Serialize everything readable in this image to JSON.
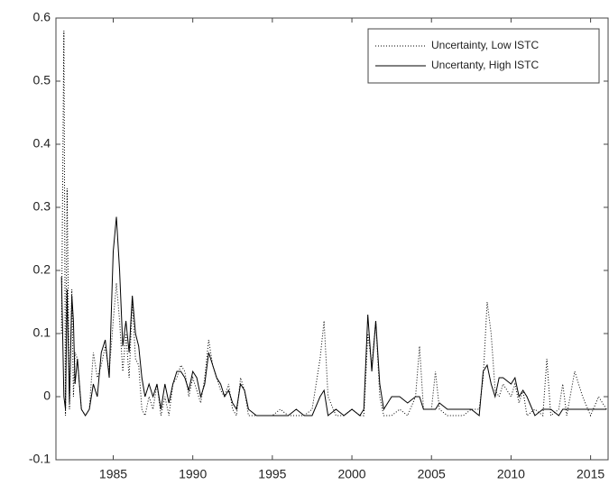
{
  "chart_data": {
    "type": "line",
    "x": [
      1981.75,
      1981.9,
      1982.0,
      1982.1,
      1982.25,
      1982.4,
      1982.5,
      1982.6,
      1982.75,
      1983.0,
      1983.25,
      1983.5,
      1983.75,
      1984.0,
      1984.25,
      1984.5,
      1984.75,
      1985.0,
      1985.2,
      1985.4,
      1985.6,
      1985.8,
      1986.0,
      1986.2,
      1986.4,
      1986.6,
      1986.8,
      1987.0,
      1987.25,
      1987.5,
      1987.75,
      1988.0,
      1988.25,
      1988.5,
      1988.75,
      1989.0,
      1989.25,
      1989.5,
      1989.75,
      1990.0,
      1990.25,
      1990.5,
      1990.75,
      1991.0,
      1991.25,
      1991.5,
      1991.75,
      1992.0,
      1992.25,
      1992.5,
      1992.75,
      1993.0,
      1993.25,
      1993.5,
      1994.0,
      1994.5,
      1995.0,
      1995.5,
      1996.0,
      1996.5,
      1997.0,
      1997.5,
      1998.0,
      1998.25,
      1998.5,
      1999.0,
      1999.5,
      2000.0,
      2000.5,
      2000.75,
      2001.0,
      2001.25,
      2001.5,
      2001.75,
      2002.0,
      2002.5,
      2003.0,
      2003.5,
      2004.0,
      2004.25,
      2004.5,
      2005.0,
      2005.25,
      2005.5,
      2006.0,
      2006.5,
      2007.0,
      2007.5,
      2008.0,
      2008.25,
      2008.5,
      2008.75,
      2009.0,
      2009.25,
      2009.5,
      2010.0,
      2010.25,
      2010.5,
      2010.75,
      2011.0,
      2011.5,
      2012.0,
      2012.25,
      2012.5,
      2013.0,
      2013.25,
      2013.5,
      2014.0,
      2014.5,
      2015.0,
      2015.5,
      2016.0
    ],
    "series": [
      {
        "name": "Uncertainty, Low ISTC",
        "color": "#000000",
        "linestyle": "dotted",
        "values": [
          0.1,
          0.58,
          -0.03,
          0.33,
          -0.02,
          0.17,
          0.0,
          0.07,
          0.06,
          -0.02,
          -0.03,
          -0.02,
          0.07,
          0.03,
          0.05,
          0.08,
          0.04,
          0.12,
          0.18,
          0.12,
          0.04,
          0.1,
          0.03,
          0.15,
          0.06,
          0.05,
          -0.02,
          -0.03,
          0.0,
          -0.02,
          0.02,
          -0.03,
          0.0,
          -0.03,
          0.02,
          0.03,
          0.05,
          0.04,
          0.0,
          0.03,
          0.01,
          -0.01,
          0.03,
          0.09,
          0.05,
          0.03,
          0.01,
          0.0,
          0.02,
          -0.02,
          -0.03,
          0.03,
          0.01,
          -0.03,
          -0.03,
          -0.03,
          -0.03,
          -0.02,
          -0.03,
          -0.03,
          -0.03,
          -0.02,
          0.06,
          0.12,
          0.0,
          -0.03,
          -0.03,
          -0.02,
          -0.03,
          -0.03,
          0.1,
          0.05,
          0.12,
          0.0,
          -0.03,
          -0.03,
          -0.02,
          -0.03,
          0.0,
          0.08,
          -0.02,
          -0.02,
          0.04,
          -0.02,
          -0.03,
          -0.03,
          -0.03,
          -0.02,
          -0.02,
          0.03,
          0.15,
          0.1,
          0.01,
          0.0,
          0.02,
          0.0,
          0.02,
          -0.01,
          0.01,
          -0.03,
          -0.02,
          -0.03,
          0.06,
          -0.03,
          -0.02,
          0.02,
          -0.03,
          0.04,
          0.0,
          -0.03,
          0.0,
          -0.02
        ]
      },
      {
        "name": "Uncertanty, High ISTC",
        "color": "#000000",
        "linestyle": "solid",
        "values": [
          0.19,
          0.0,
          -0.02,
          0.17,
          -0.01,
          0.16,
          0.12,
          0.02,
          0.06,
          -0.02,
          -0.03,
          -0.02,
          0.02,
          0.0,
          0.07,
          0.09,
          0.03,
          0.23,
          0.285,
          0.2,
          0.08,
          0.12,
          0.07,
          0.16,
          0.1,
          0.08,
          0.03,
          0.0,
          0.02,
          0.0,
          0.02,
          -0.02,
          0.02,
          -0.01,
          0.02,
          0.04,
          0.04,
          0.03,
          0.01,
          0.04,
          0.03,
          0.0,
          0.02,
          0.07,
          0.05,
          0.03,
          0.02,
          0.0,
          0.01,
          -0.01,
          -0.02,
          0.02,
          0.01,
          -0.02,
          -0.03,
          -0.03,
          -0.03,
          -0.03,
          -0.03,
          -0.02,
          -0.03,
          -0.03,
          0.0,
          0.01,
          -0.03,
          -0.02,
          -0.03,
          -0.02,
          -0.03,
          -0.02,
          0.13,
          0.04,
          0.12,
          0.02,
          -0.02,
          0.0,
          0.0,
          -0.01,
          0.0,
          0.0,
          -0.02,
          -0.02,
          -0.02,
          -0.01,
          -0.02,
          -0.02,
          -0.02,
          -0.02,
          -0.03,
          0.04,
          0.05,
          0.02,
          0.0,
          0.03,
          0.03,
          0.02,
          0.03,
          0.0,
          0.01,
          0.0,
          -0.03,
          -0.02,
          -0.02,
          -0.02,
          -0.03,
          -0.02,
          -0.02,
          -0.02,
          -0.02,
          -0.02,
          -0.02,
          -0.02
        ]
      }
    ],
    "xlim": [
      1981.4,
      2016.1
    ],
    "ylim": [
      -0.1,
      0.6
    ],
    "xticks": [
      1985,
      1990,
      1995,
      2000,
      2005,
      2010,
      2015
    ],
    "yticks": [
      -0.1,
      0,
      0.1,
      0.2,
      0.3,
      0.4,
      0.5,
      0.6
    ],
    "legend": "upper right",
    "grid": false
  }
}
